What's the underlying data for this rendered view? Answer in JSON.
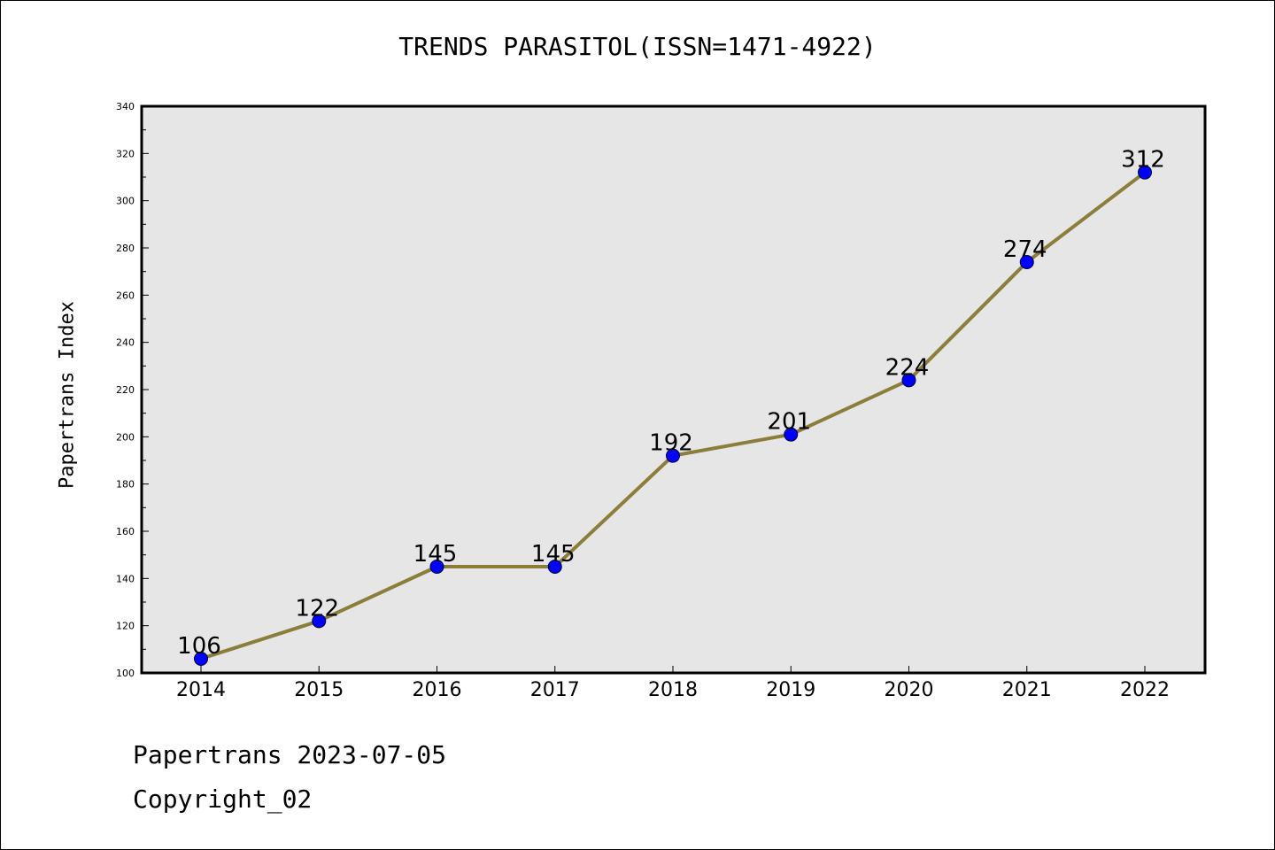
{
  "title": "TRENDS PARASITOL(ISSN=1471-4922)",
  "footer": {
    "line1": "Papertrans 2023-07-05",
    "line2": "Copyright_02"
  },
  "colors": {
    "line": "#8B7D3A",
    "marker": "#0000FF",
    "plot_background": "#E6E6E6"
  },
  "chart_data": {
    "type": "line",
    "title": "TRENDS PARASITOL(ISSN=1471-4922)",
    "xlabel": "",
    "ylabel": "Papertrans Index",
    "categories": [
      "2014",
      "2015",
      "2016",
      "2017",
      "2018",
      "2019",
      "2020",
      "2021",
      "2022"
    ],
    "series": [
      {
        "values": [
          106,
          122,
          145,
          145,
          192,
          201,
          224,
          274,
          312
        ]
      }
    ],
    "data_labels": [
      "106",
      "122",
      "145",
      "145",
      "192",
      "201",
      "224",
      "274",
      "312"
    ],
    "ylim": [
      100,
      340
    ],
    "yticks": [
      100,
      120,
      140,
      160,
      180,
      200,
      220,
      240,
      260,
      280,
      300,
      320,
      340
    ],
    "grid": false,
    "legend": "none"
  }
}
